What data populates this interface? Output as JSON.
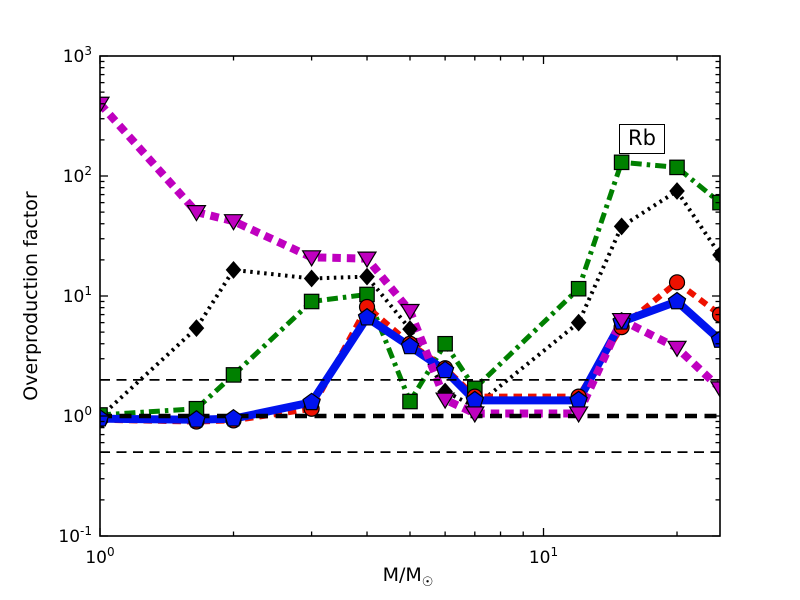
{
  "figure": {
    "background": "#ffffff"
  },
  "chart_data": {
    "type": "line",
    "title": "",
    "xlabel_main": "M/M",
    "xlabel_sub": "☉",
    "ylabel": "Overproduction factor",
    "x_scale": "log",
    "y_scale": "log",
    "xlim": [
      1,
      25
    ],
    "ylim": [
      0.1,
      1000
    ],
    "grid": false,
    "legend": "none",
    "tick_label_base": "10",
    "x_tick_exponents": [
      "0",
      "1"
    ],
    "y_tick_exponents": [
      "-1",
      "0",
      "1",
      "2",
      "3"
    ],
    "x_minor_ticks": [
      2,
      3,
      4,
      5,
      6,
      7,
      8,
      9,
      20
    ],
    "x": [
      1,
      1.65,
      2,
      3,
      4,
      5,
      6,
      7,
      12,
      15,
      20,
      25
    ],
    "series": [
      {
        "name": "black-dotted-diamond",
        "color": "#000000",
        "linestyle": "dotted",
        "linewidth": 4,
        "marker": "diamond",
        "values": [
          0.98,
          5.4,
          16.5,
          14,
          14.5,
          5.3,
          1.6,
          1.2,
          6,
          38,
          75,
          22
        ]
      },
      {
        "name": "green-dashdot-square",
        "color": "#008000",
        "linestyle": "dashdot",
        "linewidth": 5,
        "marker": "square",
        "values": [
          1.02,
          1.15,
          2.2,
          9,
          10.3,
          1.32,
          4.0,
          1.7,
          11.5,
          130,
          118,
          60
        ]
      },
      {
        "name": "red-dashed-circle",
        "color": "#ee1100",
        "linestyle": "dashed",
        "linewidth": 6,
        "marker": "circle",
        "values": [
          0.93,
          0.9,
          0.92,
          1.15,
          8.1,
          4.0,
          2.5,
          1.45,
          1.45,
          5.5,
          13,
          7
        ]
      },
      {
        "name": "blue-solid-pentagon",
        "color": "#0013ee",
        "linestyle": "solid",
        "linewidth": 8,
        "marker": "pentagon",
        "values": [
          0.95,
          0.93,
          0.95,
          1.3,
          6.6,
          3.8,
          2.4,
          1.35,
          1.35,
          6.1,
          9,
          4.3
        ]
      },
      {
        "name": "magenta-thickdashed-triangle",
        "color": "#bf00bf",
        "linestyle": "dashed",
        "linewidth": 8,
        "marker": "triangle-down",
        "values": [
          400,
          50,
          42,
          21,
          20.5,
          7.5,
          1.37,
          1.05,
          1.05,
          6.3,
          3.7,
          1.7
        ]
      }
    ],
    "ref_lines": [
      {
        "y": 2,
        "style": "thin-dashed",
        "color": "#000000"
      },
      {
        "y": 0.5,
        "style": "thin-dashed",
        "color": "#000000"
      },
      {
        "y": 1,
        "style": "thick-dashed",
        "color": "#000000"
      }
    ],
    "annotation": {
      "text": "Rb",
      "x": 16.4,
      "y": 200
    }
  }
}
